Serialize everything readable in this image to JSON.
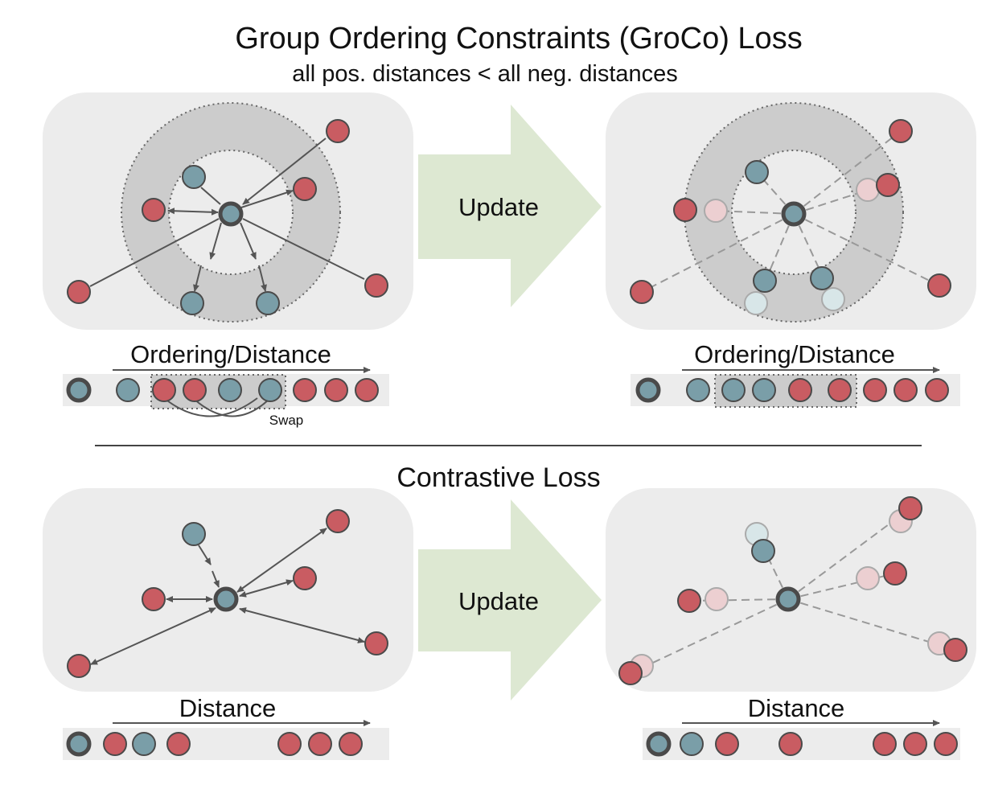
{
  "groco": {
    "title": "Group Ordering Constraints (GroCo) Loss",
    "subtitle": "all pos. distances < all neg. distances",
    "update_label": "Update",
    "ordering_label_left": "Ordering/Distance",
    "ordering_label_right": "Ordering/Distance",
    "swap_label": "Swap"
  },
  "contrastive": {
    "title": "Contrastive Loss",
    "update_label": "Update",
    "distance_label_left": "Distance",
    "distance_label_right": "Distance"
  },
  "colors": {
    "positive": "#7a9ea8",
    "negative": "#c95c62",
    "anchor_ring": "#4a4a4a",
    "panel": "#ececec",
    "annulus": "#cccccc",
    "arrow_fill": "#dde8d2",
    "line": "#555555",
    "dashed": "#999999",
    "faded_negative": "#eccfd1",
    "faded_positive": "#d8e6e8"
  }
}
